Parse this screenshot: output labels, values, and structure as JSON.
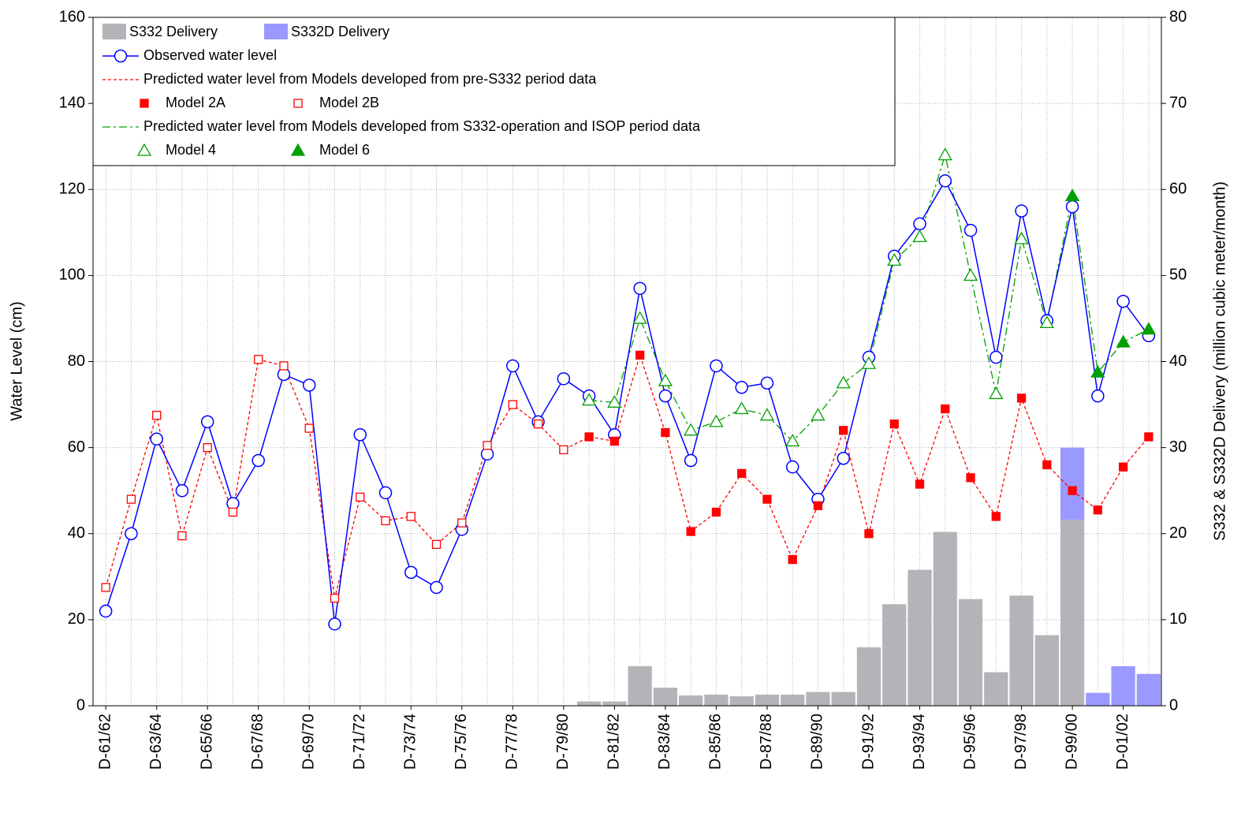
{
  "chart_data": {
    "type": "combo",
    "ylabel": "Water Level (cm)",
    "y2label": "S332 & S332D Delivery (million cubic meter/month)",
    "categories": [
      "D-61/62",
      null,
      "D-63/64",
      null,
      "D-65/66",
      null,
      "D-67/68",
      null,
      "D-69/70",
      null,
      "D-71/72",
      null,
      "D-73/74",
      null,
      "D-75/76",
      null,
      "D-77/78",
      null,
      "D-79/80",
      null,
      "D-81/82",
      null,
      "D-83/84",
      null,
      "D-85/86",
      null,
      "D-87/88",
      null,
      "D-89/90",
      null,
      "D-91/92",
      null,
      "D-93/94",
      null,
      "D-95/96",
      null,
      "D-97/98",
      null,
      "D-99/00",
      null,
      "D-01/02",
      null
    ],
    "ylim": [
      0,
      160
    ],
    "yticks": [
      0,
      20,
      40,
      60,
      80,
      100,
      120,
      140,
      160
    ],
    "y2lim": [
      0,
      80
    ],
    "y2ticks": [
      0,
      10,
      20,
      30,
      40,
      50,
      60,
      70,
      80
    ],
    "grid": true,
    "legend": "upper left",
    "series": [
      {
        "name": "S332 Delivery",
        "type": "bar",
        "axis": "y2",
        "color": "#b4b4b8",
        "values": [
          null,
          null,
          null,
          null,
          null,
          null,
          null,
          null,
          null,
          null,
          null,
          null,
          null,
          null,
          null,
          null,
          null,
          null,
          null,
          0.5,
          0.5,
          4.6,
          2.1,
          1.2,
          1.3,
          1.1,
          1.3,
          1.3,
          1.6,
          1.6,
          6.8,
          11.8,
          15.8,
          20.2,
          12.4,
          3.9,
          12.8,
          8.2,
          21.6,
          null,
          null,
          null
        ]
      },
      {
        "name": "S332D Delivery",
        "type": "bar",
        "axis": "y2",
        "color": "#9999ff",
        "values": [
          null,
          null,
          null,
          null,
          null,
          null,
          null,
          null,
          null,
          null,
          null,
          null,
          null,
          null,
          null,
          null,
          null,
          null,
          null,
          null,
          null,
          null,
          null,
          null,
          null,
          null,
          null,
          null,
          null,
          null,
          null,
          null,
          null,
          null,
          null,
          null,
          null,
          null,
          8.4,
          1.5,
          4.6,
          3.7
        ]
      },
      {
        "name": "Observed water level",
        "type": "line",
        "marker": "circle-open",
        "color": "#0000ff",
        "values": [
          22,
          40,
          62,
          50,
          66,
          47,
          57,
          77,
          74.5,
          19,
          63,
          49.5,
          31,
          27.5,
          41,
          58.5,
          79,
          66,
          76,
          72,
          63,
          97,
          72,
          57,
          79,
          74,
          75,
          55.5,
          48,
          57.5,
          81,
          104.5,
          112,
          122,
          110.5,
          81,
          115,
          89.5,
          116,
          72,
          94,
          86
        ]
      },
      {
        "name": "Model 2A",
        "type": "marker",
        "marker": "square-filled",
        "color": "#ff0000",
        "values": [
          null,
          null,
          null,
          null,
          null,
          null,
          null,
          null,
          null,
          null,
          null,
          null,
          null,
          null,
          null,
          null,
          null,
          null,
          null,
          62.5,
          61.5,
          81.5,
          63.5,
          40.5,
          45,
          54,
          48,
          34,
          46.5,
          64,
          40,
          65.5,
          51.5,
          69,
          53,
          44,
          71.5,
          56,
          50,
          45.5,
          55.5,
          62.5
        ]
      },
      {
        "name": "Model 2B",
        "type": "marker",
        "marker": "square-open",
        "color": "#ff0000",
        "values": [
          27.5,
          48,
          67.5,
          39.5,
          60,
          45,
          80.5,
          79,
          64.5,
          25,
          48.5,
          43,
          44,
          37.5,
          42.5,
          60.5,
          70,
          65.5,
          59.5,
          null,
          null,
          null,
          null,
          null,
          null,
          null,
          null,
          null,
          null,
          null,
          null,
          null,
          null,
          null,
          null,
          null,
          null,
          null,
          null,
          null,
          null,
          null
        ]
      },
      {
        "name": "Model 4",
        "type": "marker",
        "marker": "triangle-open",
        "color": "#00a000",
        "values": [
          null,
          null,
          null,
          null,
          null,
          null,
          null,
          null,
          null,
          null,
          null,
          null,
          null,
          null,
          null,
          null,
          null,
          null,
          null,
          71,
          70.5,
          90,
          75.5,
          64,
          66,
          69,
          67.5,
          61.5,
          67.5,
          75,
          79.5,
          103.5,
          109,
          128,
          100,
          72.5,
          108.5,
          89,
          null,
          null,
          null,
          null
        ]
      },
      {
        "name": "Model 6",
        "type": "marker",
        "marker": "triangle-filled",
        "color": "#00a000",
        "values": [
          null,
          null,
          null,
          null,
          null,
          null,
          null,
          null,
          null,
          null,
          null,
          null,
          null,
          null,
          null,
          null,
          null,
          null,
          null,
          null,
          null,
          null,
          null,
          null,
          null,
          null,
          null,
          null,
          null,
          null,
          null,
          null,
          null,
          null,
          null,
          null,
          null,
          null,
          118.5,
          77.5,
          84.5,
          87.5
        ]
      }
    ],
    "line_groups": [
      {
        "name": "Predicted water level from Models developed from pre-S332 period data",
        "color": "#ff0000",
        "series": [
          3,
          4
        ]
      },
      {
        "name": "Predicted water level from Models developed from S332-operation and ISOP period data",
        "color": "#00a000",
        "series": [
          5,
          6
        ]
      }
    ]
  }
}
